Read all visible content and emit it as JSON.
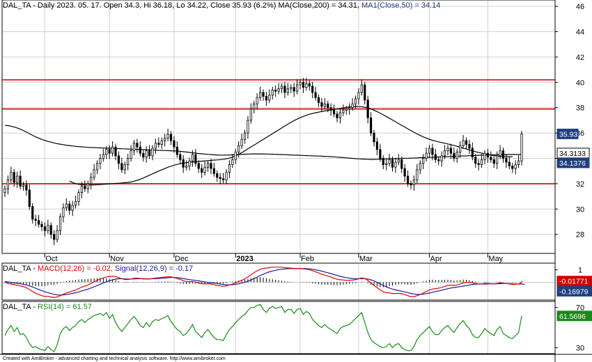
{
  "header": {
    "main_prefix": "DAL_TA - Daily 2023. 05. 17. Open 34.3, Hi 36.18, Lo 34.22, Close 35.93 (6.2%)",
    "main_ma200": " MA(Close,200) = 34.31,",
    "main_ma50": " MA1(Close,50) = 34.14",
    "macd_prefix": "DAL_TA - ",
    "macd_label": "MACD(12,26) = -0.02,",
    "macd_signal": " Signal(12,26,9) = -0.17",
    "rsi_prefix": "DAL_TA - ",
    "rsi_label": "RSI(14) = 61.57"
  },
  "footer": "Created with AmiBroker - advanced charting and technical analysis software. http://www.amibroker.com",
  "price_tags": {
    "close": "35.93",
    "ma200": "34.3133",
    "ma50": "34.1376",
    "macd": "-0.01771",
    "signal": "-0.16979",
    "rsi": "61.5696"
  },
  "colors": {
    "up": "#ffffff",
    "down": "#000000",
    "hline": "#e00000",
    "macd": "#e00000",
    "signal": "#1a1aa0",
    "rsi": "#1a8a1a",
    "tag_blue": "#1f3f7f",
    "tag_red": "#d00000",
    "tag_green": "#1a8a1a"
  },
  "chart_data": [
    {
      "type": "candlestick",
      "title": "DAL_TA - Daily",
      "months": [
        {
          "label": "Oct",
          "index": 13
        },
        {
          "label": "Nov",
          "index": 34
        },
        {
          "label": "Dec",
          "index": 55
        },
        {
          "label": "2023",
          "index": 75
        },
        {
          "label": "Feb",
          "index": 96
        },
        {
          "label": "Mar",
          "index": 115
        },
        {
          "label": "Apr",
          "index": 138
        },
        {
          "label": "May",
          "index": 157
        }
      ],
      "yticks": [
        28,
        30,
        32,
        34,
        36,
        38,
        40,
        42,
        44,
        46
      ],
      "ylim": [
        26.5,
        46.5
      ],
      "horizontal_lines": [
        32.0,
        37.9,
        40.2
      ],
      "close": [
        31.6,
        32.3,
        32.9,
        32.1,
        32.6,
        31.8,
        31.9,
        31.5,
        30.2,
        29.2,
        29.1,
        28.8,
        28.6,
        28.3,
        28.7,
        28.0,
        27.6,
        28.3,
        29.4,
        30.1,
        30.4,
        29.9,
        30.3,
        30.6,
        31.3,
        31.8,
        31.6,
        32.0,
        32.5,
        33.1,
        33.6,
        34.0,
        34.3,
        34.7,
        34.4,
        34.9,
        34.2,
        33.6,
        33.1,
        33.5,
        34.0,
        34.6,
        35.2,
        34.9,
        34.4,
        34.1,
        34.6,
        34.2,
        34.8,
        35.2,
        35.1,
        35.4,
        35.6,
        35.9,
        35.4,
        34.9,
        34.3,
        33.9,
        33.3,
        33.4,
        33.8,
        34.3,
        33.6,
        33.2,
        32.9,
        33.3,
        33.6,
        33.2,
        32.8,
        32.5,
        32.4,
        32.3,
        32.9,
        33.5,
        33.9,
        34.5,
        35.0,
        35.5,
        36.0,
        37.0,
        37.9,
        38.3,
        38.8,
        39.2,
        38.9,
        38.6,
        39.0,
        39.4,
        39.3,
        39.5,
        39.7,
        39.2,
        39.5,
        39.6,
        39.3,
        39.8,
        40.0,
        39.6,
        39.9,
        39.7,
        39.2,
        38.8,
        38.4,
        38.1,
        38.3,
        38.0,
        37.8,
        37.5,
        37.2,
        37.6,
        37.8,
        37.9,
        38.0,
        38.3,
        38.7,
        39.2,
        39.8,
        38.6,
        37.2,
        36.0,
        35.3,
        34.7,
        34.0,
        33.5,
        33.6,
        33.9,
        33.3,
        33.7,
        33.9,
        33.2,
        32.6,
        32.0,
        31.9,
        32.3,
        33.1,
        33.6,
        34.0,
        34.4,
        34.8,
        34.3,
        33.9,
        33.8,
        34.2,
        34.6,
        34.8,
        34.4,
        34.0,
        34.5,
        35.0,
        35.4,
        35.1,
        34.8,
        34.1,
        33.6,
        33.5,
        33.9,
        34.4,
        34.1,
        33.9,
        33.6,
        34.2,
        34.6,
        34.0,
        33.7,
        33.4,
        33.2,
        33.5,
        33.8,
        35.93
      ],
      "ma200": [
        36.6,
        36.58,
        36.54,
        36.48,
        36.4,
        36.3,
        36.2,
        36.08,
        35.95,
        35.82,
        35.7,
        35.6,
        35.5,
        35.42,
        35.34,
        35.28,
        35.22,
        35.16,
        35.12,
        35.08,
        35.04,
        35.01,
        34.98,
        34.95,
        34.93,
        34.91,
        34.89,
        34.87,
        34.86,
        34.85,
        34.84,
        34.83,
        34.82,
        34.81,
        34.8,
        34.79,
        34.78,
        34.77,
        34.76,
        34.75,
        34.74,
        34.73,
        34.72,
        34.71,
        34.7,
        34.69,
        34.68,
        34.67,
        34.66,
        34.65,
        34.64,
        34.63,
        34.62,
        34.61,
        34.6,
        34.59,
        34.58,
        34.56,
        34.53,
        34.5,
        34.47,
        34.44,
        34.41,
        34.38,
        34.36,
        34.34,
        34.32,
        34.3,
        34.28,
        34.27,
        34.26,
        34.26,
        34.26,
        34.27,
        34.28,
        34.3,
        34.31,
        34.32,
        34.33,
        34.34,
        34.35,
        34.35,
        34.35,
        34.35,
        34.35,
        34.34,
        34.34,
        34.33,
        34.32,
        34.31,
        34.3,
        34.29,
        34.28,
        34.27,
        34.26,
        34.25,
        34.24,
        34.23,
        34.22,
        34.21,
        34.2,
        34.19,
        34.18,
        34.17,
        34.16,
        34.15,
        34.14,
        34.12,
        34.1,
        34.08,
        34.06,
        34.04,
        34.02,
        34.0,
        33.98,
        33.96,
        33.95,
        33.94,
        33.93,
        33.92,
        33.92,
        33.93,
        33.94,
        33.95,
        33.96,
        33.97,
        33.98,
        33.98,
        33.99,
        34.0,
        34.0,
        34.01,
        34.02,
        34.03,
        34.04,
        34.05,
        34.06,
        34.07,
        34.08,
        34.09,
        34.1,
        34.11,
        34.12,
        34.13,
        34.14,
        34.15,
        34.16,
        34.17,
        34.18,
        34.19,
        34.2,
        34.21,
        34.22,
        34.23,
        34.24,
        34.25,
        34.26,
        34.27,
        34.28,
        34.29,
        34.29,
        34.3,
        34.3,
        34.3,
        34.31,
        34.31,
        34.31,
        34.31,
        34.31
      ],
      "ma50": [
        null,
        null,
        null,
        null,
        null,
        null,
        null,
        null,
        null,
        null,
        null,
        null,
        null,
        null,
        null,
        null,
        null,
        null,
        null,
        null,
        null,
        32.2,
        32.1,
        32.0,
        31.95,
        31.92,
        31.9,
        31.9,
        31.9,
        31.91,
        31.92,
        31.93,
        31.95,
        31.97,
        31.99,
        32.0,
        32.02,
        32.04,
        32.06,
        32.08,
        32.1,
        32.14,
        32.2,
        32.27,
        32.35,
        32.45,
        32.56,
        32.67,
        32.78,
        32.89,
        33.0,
        33.1,
        33.2,
        33.3,
        33.38,
        33.46,
        33.52,
        33.58,
        33.62,
        33.66,
        33.69,
        33.72,
        33.74,
        33.76,
        33.78,
        33.8,
        33.82,
        33.84,
        33.86,
        33.88,
        33.9,
        33.93,
        33.97,
        34.02,
        34.1,
        34.2,
        34.32,
        34.45,
        34.6,
        34.75,
        34.9,
        35.05,
        35.2,
        35.35,
        35.5,
        35.65,
        35.8,
        35.95,
        36.1,
        36.25,
        36.4,
        36.55,
        36.7,
        36.85,
        36.98,
        37.1,
        37.21,
        37.31,
        37.4,
        37.48,
        37.55,
        37.6,
        37.65,
        37.7,
        37.74,
        37.78,
        37.82,
        37.86,
        37.9,
        37.94,
        37.98,
        38.02,
        38.06,
        38.08,
        38.1,
        38.1,
        38.08,
        38.04,
        37.98,
        37.9,
        37.8,
        37.69,
        37.57,
        37.44,
        37.31,
        37.17,
        37.03,
        36.89,
        36.75,
        36.61,
        36.47,
        36.33,
        36.19,
        36.06,
        35.93,
        35.81,
        35.7,
        35.6,
        35.51,
        35.43,
        35.36,
        35.3,
        35.25,
        35.2,
        35.14,
        35.08,
        35.02,
        34.95,
        34.88,
        34.81,
        34.74,
        34.67,
        34.6,
        34.53,
        34.47,
        34.41,
        34.36,
        34.31,
        34.26,
        34.22,
        34.19,
        34.16,
        34.14,
        34.13,
        34.13,
        34.14
      ]
    },
    {
      "type": "line",
      "title": "MACD(12,26)",
      "ylim": [
        -1.45,
        1.55
      ],
      "yticks": [
        1
      ],
      "series": [
        {
          "name": "MACD(12,26)",
          "color": "#e00000",
          "values": [
            0.0,
            -0.1,
            -0.15,
            -0.2,
            -0.25,
            -0.3,
            -0.35,
            -0.45,
            -0.6,
            -0.75,
            -0.9,
            -1.0,
            -1.1,
            -1.15,
            -1.15,
            -1.2,
            -1.25,
            -1.2,
            -1.1,
            -0.98,
            -0.87,
            -0.8,
            -0.72,
            -0.63,
            -0.52,
            -0.4,
            -0.32,
            -0.22,
            -0.1,
            0.02,
            0.15,
            0.26,
            0.35,
            0.43,
            0.45,
            0.5,
            0.46,
            0.38,
            0.28,
            0.22,
            0.22,
            0.26,
            0.32,
            0.33,
            0.3,
            0.26,
            0.27,
            0.26,
            0.3,
            0.34,
            0.36,
            0.39,
            0.42,
            0.46,
            0.44,
            0.38,
            0.3,
            0.22,
            0.12,
            0.06,
            0.04,
            0.06,
            0.01,
            -0.05,
            -0.12,
            -0.14,
            -0.12,
            -0.15,
            -0.2,
            -0.26,
            -0.3,
            -0.33,
            -0.3,
            -0.22,
            -0.14,
            -0.05,
            0.05,
            0.16,
            0.28,
            0.42,
            0.6,
            0.78,
            0.93,
            1.05,
            1.12,
            1.15,
            1.18,
            1.22,
            1.22,
            1.22,
            1.22,
            1.18,
            1.16,
            1.15,
            1.12,
            1.12,
            1.12,
            1.08,
            1.06,
            1.02,
            0.94,
            0.85,
            0.75,
            0.65,
            0.58,
            0.5,
            0.42,
            0.33,
            0.24,
            0.2,
            0.18,
            0.16,
            0.15,
            0.17,
            0.21,
            0.27,
            0.35,
            0.3,
            0.14,
            -0.06,
            -0.26,
            -0.45,
            -0.62,
            -0.78,
            -0.85,
            -0.86,
            -0.92,
            -0.92,
            -0.9,
            -0.94,
            -1.0,
            -1.1,
            -1.17,
            -1.17,
            -1.1,
            -1.0,
            -0.88,
            -0.76,
            -0.63,
            -0.56,
            -0.52,
            -0.48,
            -0.42,
            -0.34,
            -0.26,
            -0.24,
            -0.26,
            -0.22,
            -0.14,
            -0.05,
            -0.02,
            -0.01,
            -0.05,
            -0.1,
            -0.14,
            -0.14,
            -0.1,
            -0.1,
            -0.12,
            -0.14,
            -0.1,
            -0.06,
            -0.08,
            -0.11,
            -0.14,
            -0.17,
            -0.17,
            -0.15,
            -0.02
          ]
        },
        {
          "name": "Signal(12,26,9)",
          "color": "#1a1aa0",
          "values": [
            0.05,
            0.02,
            -0.01,
            -0.05,
            -0.09,
            -0.13,
            -0.17,
            -0.22,
            -0.3,
            -0.39,
            -0.49,
            -0.59,
            -0.69,
            -0.78,
            -0.85,
            -0.92,
            -0.99,
            -1.03,
            -1.04,
            -1.03,
            -1.0,
            -0.96,
            -0.91,
            -0.85,
            -0.79,
            -0.71,
            -0.64,
            -0.56,
            -0.47,
            -0.37,
            -0.27,
            -0.16,
            -0.06,
            0.04,
            0.12,
            0.2,
            0.25,
            0.28,
            0.28,
            0.27,
            0.26,
            0.26,
            0.27,
            0.28,
            0.28,
            0.28,
            0.28,
            0.27,
            0.28,
            0.29,
            0.3,
            0.32,
            0.34,
            0.36,
            0.38,
            0.38,
            0.37,
            0.34,
            0.3,
            0.25,
            0.21,
            0.18,
            0.15,
            0.11,
            0.06,
            0.02,
            -0.01,
            -0.04,
            -0.07,
            -0.11,
            -0.15,
            -0.18,
            -0.21,
            -0.21,
            -0.2,
            -0.17,
            -0.12,
            -0.07,
            0.0,
            0.08,
            0.18,
            0.3,
            0.42,
            0.54,
            0.65,
            0.75,
            0.84,
            0.91,
            0.97,
            1.02,
            1.06,
            1.08,
            1.1,
            1.11,
            1.11,
            1.11,
            1.11,
            1.11,
            1.1,
            1.08,
            1.05,
            1.01,
            0.96,
            0.9,
            0.83,
            0.77,
            0.7,
            0.62,
            0.55,
            0.48,
            0.42,
            0.37,
            0.33,
            0.3,
            0.28,
            0.28,
            0.29,
            0.29,
            0.26,
            0.19,
            0.1,
            -0.01,
            -0.13,
            -0.26,
            -0.38,
            -0.47,
            -0.56,
            -0.63,
            -0.68,
            -0.73,
            -0.79,
            -0.85,
            -0.91,
            -0.96,
            -0.99,
            -0.99,
            -0.97,
            -0.93,
            -0.88,
            -0.82,
            -0.76,
            -0.71,
            -0.65,
            -0.59,
            -0.53,
            -0.47,
            -0.43,
            -0.4,
            -0.36,
            -0.32,
            -0.27,
            -0.22,
            -0.18,
            -0.16,
            -0.15,
            -0.15,
            -0.15,
            -0.14,
            -0.13,
            -0.13,
            -0.13,
            -0.12,
            -0.11,
            -0.11,
            -0.12,
            -0.13,
            -0.14,
            -0.15,
            -0.15,
            -0.17
          ]
        }
      ]
    },
    {
      "type": "line",
      "title": "RSI(14)",
      "ylim": [
        24,
        76
      ],
      "yticks": [
        30,
        70
      ],
      "series": [
        {
          "name": "RSI(14)",
          "color": "#1a8a1a",
          "values": [
            42,
            48,
            52,
            46,
            50,
            43,
            44,
            40,
            34,
            30,
            31,
            29,
            28,
            27,
            31,
            28,
            26,
            33,
            44,
            49,
            51,
            47,
            50,
            52,
            56,
            58,
            55,
            58,
            60,
            62,
            63,
            64,
            62,
            65,
            59,
            63,
            55,
            50,
            46,
            50,
            54,
            58,
            61,
            57,
            52,
            50,
            55,
            51,
            56,
            58,
            57,
            59,
            60,
            62,
            56,
            52,
            48,
            46,
            42,
            44,
            48,
            53,
            46,
            43,
            40,
            45,
            48,
            44,
            40,
            38,
            38,
            37,
            43,
            48,
            51,
            55,
            58,
            61,
            63,
            67,
            70,
            70,
            72,
            73,
            68,
            65,
            69,
            71,
            69,
            70,
            71,
            65,
            68,
            68,
            64,
            68,
            69,
            63,
            66,
            64,
            58,
            55,
            52,
            50,
            53,
            50,
            48,
            46,
            44,
            49,
            51,
            52,
            53,
            56,
            59,
            62,
            65,
            55,
            45,
            38,
            35,
            33,
            31,
            30,
            31,
            34,
            30,
            33,
            34,
            30,
            28,
            27,
            27,
            31,
            38,
            42,
            45,
            48,
            51,
            46,
            43,
            43,
            47,
            50,
            52,
            48,
            45,
            50,
            54,
            57,
            52,
            49,
            43,
            40,
            40,
            44,
            49,
            46,
            44,
            42,
            48,
            51,
            44,
            42,
            40,
            39,
            42,
            45,
            61.57
          ]
        }
      ]
    }
  ]
}
